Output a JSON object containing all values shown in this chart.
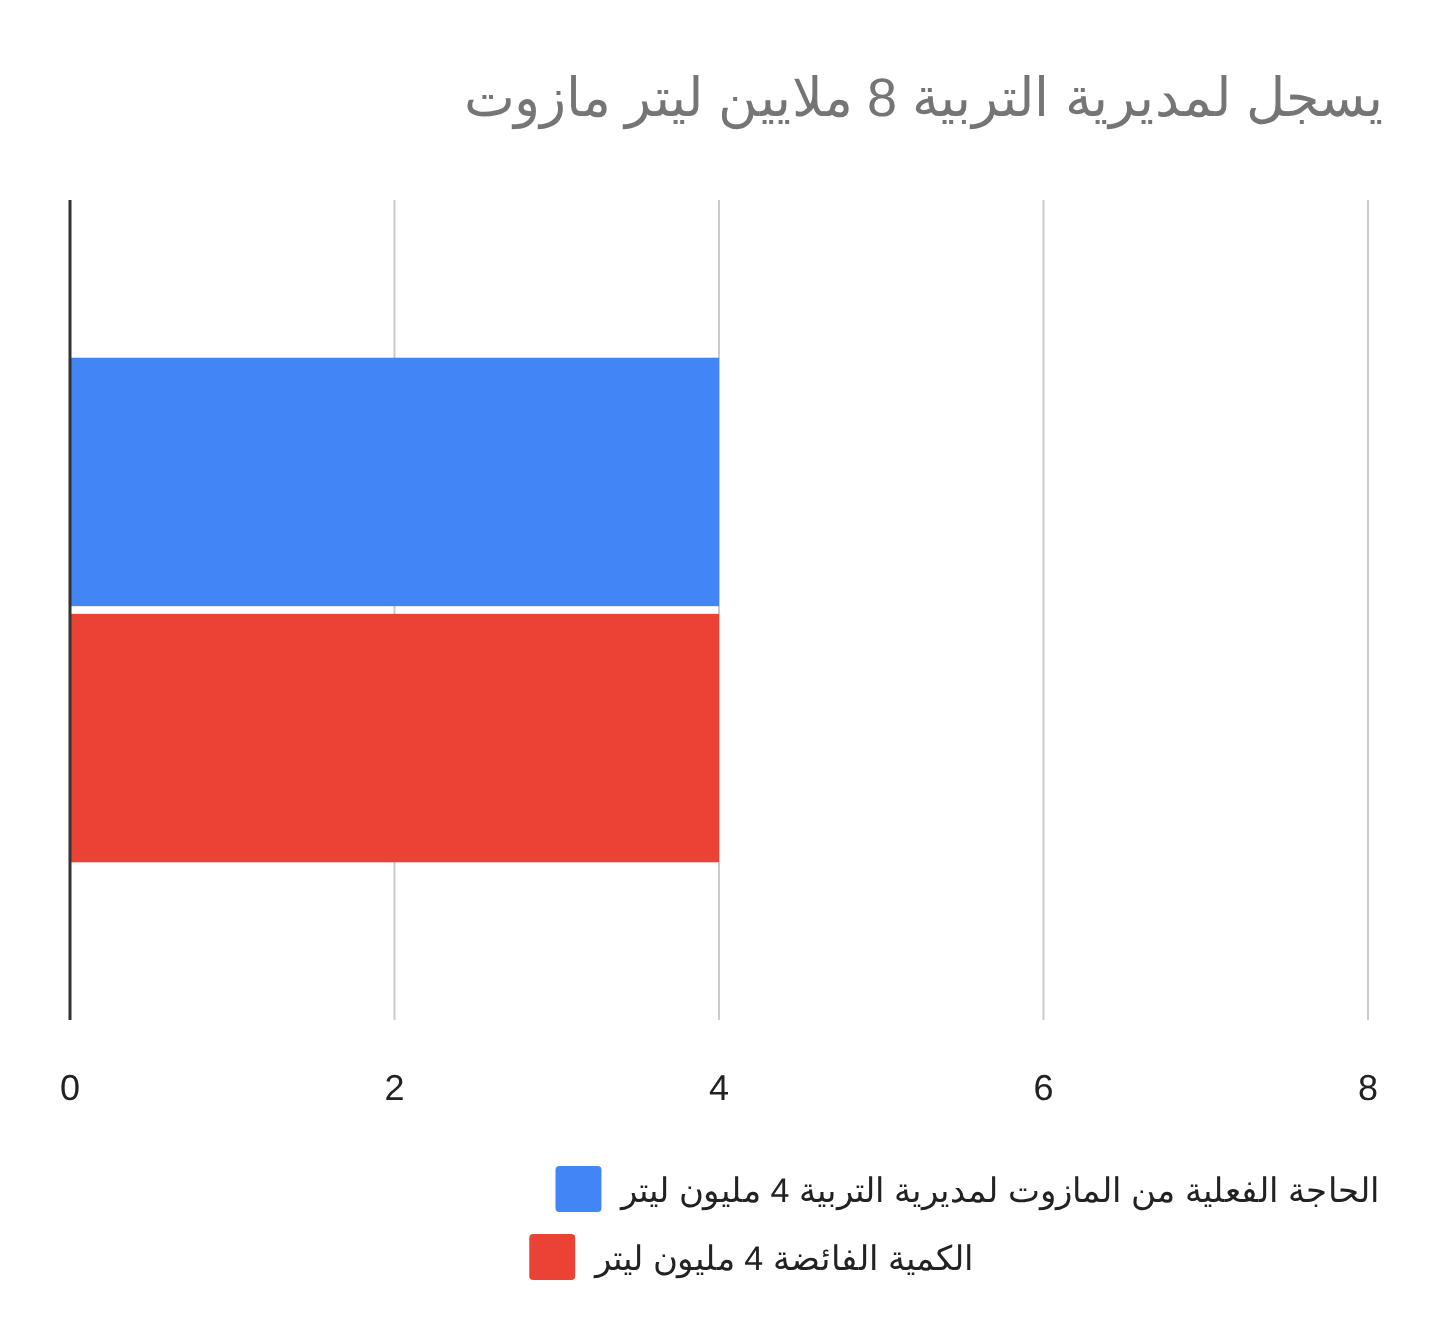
{
  "chart_data": {
    "type": "bar",
    "orientation": "horizontal",
    "title": "يسجل لمديرية التربية 8 ملايين ليتر مازوت",
    "categories": [
      null
    ],
    "series": [
      {
        "name": "الحاجة الفعلية من المازوت لمديرية التربية 4 مليون ليتر",
        "color": "#4285f4",
        "values": [
          4
        ]
      },
      {
        "name": "الكمية الفائضة 4 مليون ليتر",
        "color": "#ea4335",
        "values": [
          4
        ]
      }
    ],
    "xlim": [
      0,
      8
    ],
    "xticks": [
      0,
      2,
      4,
      6,
      8
    ],
    "grid": "x",
    "legend": "bottom"
  }
}
